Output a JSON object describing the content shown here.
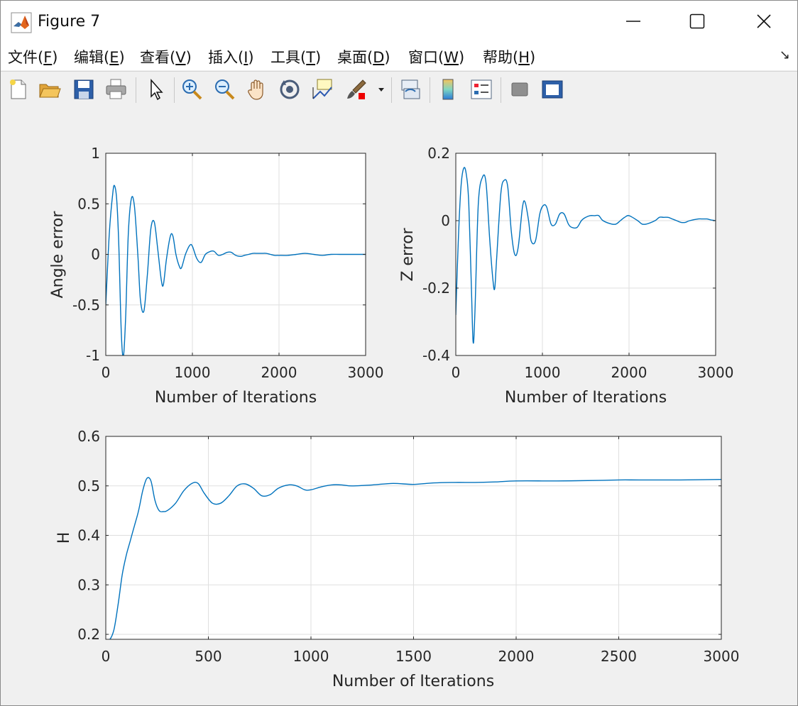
{
  "window": {
    "title": "Figure 7",
    "controls": [
      "minimize-icon",
      "maximize-icon",
      "close-icon"
    ]
  },
  "menubar": {
    "items": [
      {
        "label": "文件(",
        "key": "F",
        "end": ")"
      },
      {
        "label": "编辑(",
        "key": "E",
        "end": ")"
      },
      {
        "label": "查看(",
        "key": "V",
        "end": ")"
      },
      {
        "label": "插入(",
        "key": "I",
        "end": ")"
      },
      {
        "label": "工具(",
        "key": "T",
        "end": ")"
      },
      {
        "label": "桌面(",
        "key": "D",
        "end": ")"
      },
      {
        "label": "窗口(",
        "key": "W",
        "end": ")"
      },
      {
        "label": "帮助(",
        "key": "H",
        "end": ")"
      }
    ],
    "corner": "↘"
  },
  "toolbar": {
    "icons": [
      "new-figure-icon",
      "open-file-icon",
      "save-icon",
      "print-icon",
      "select-arrow-icon",
      "zoom-in-icon",
      "zoom-out-icon",
      "pan-hand-icon",
      "rotate-3d-icon",
      "data-cursor-icon",
      "brush-icon",
      "brush-dropdown-icon",
      "link-plot-icon",
      "colorbar-icon",
      "legend-icon",
      "hide-plot-tools-icon",
      "show-plot-tools-icon"
    ]
  },
  "colors": {
    "series": "#0072bd",
    "grid": "#dfdfdf",
    "axis": "#262626"
  },
  "chart_data": [
    {
      "type": "line",
      "xlabel": "Number of Iterations",
      "ylabel": "Angle error",
      "xlim": [
        0,
        3000
      ],
      "ylim": [
        -1,
        1
      ],
      "xticks": [
        "0",
        "1000",
        "2000",
        "3000"
      ],
      "yticks": [
        "-1",
        "-0.5",
        "0",
        "0.5",
        "1"
      ],
      "grid": true,
      "series": [
        {
          "x": [
            0,
            40,
            80,
            100,
            125,
            150,
            180,
            205,
            230,
            260,
            295,
            330,
            370,
            400,
            440,
            480,
            520,
            560,
            600,
            640,
            665,
            700,
            745,
            775,
            810,
            850,
            875,
            920,
            970,
            1000,
            1050,
            1100,
            1150,
            1210,
            1250,
            1300,
            1350,
            1400,
            1450,
            1500,
            1560,
            1600,
            1650,
            1700,
            1750,
            1800,
            1850,
            1900,
            1950,
            2000,
            2100,
            2200,
            2300,
            2400,
            2500,
            2600,
            2700,
            2800,
            2900,
            3000
          ],
          "y": [
            -0.5,
            0.2,
            0.6,
            0.68,
            0.55,
            0.1,
            -0.8,
            -1.0,
            -0.6,
            0.2,
            0.55,
            0.48,
            0.0,
            -0.45,
            -0.56,
            -0.2,
            0.25,
            0.32,
            0.05,
            -0.25,
            -0.3,
            -0.05,
            0.18,
            0.18,
            0.0,
            -0.12,
            -0.13,
            0.0,
            0.09,
            0.08,
            -0.04,
            -0.08,
            0.0,
            0.03,
            0.03,
            -0.01,
            0.0,
            0.02,
            0.02,
            -0.01,
            -0.02,
            -0.01,
            0.0,
            0.01,
            0.01,
            0.01,
            0.01,
            0.0,
            -0.01,
            -0.01,
            -0.01,
            0.0,
            0.01,
            0.0,
            -0.01,
            0.0,
            0.0,
            0.0,
            0.0,
            0.0
          ]
        }
      ]
    },
    {
      "type": "line",
      "xlabel": "Number of Iterations",
      "ylabel": "Z error",
      "xlim": [
        0,
        3000
      ],
      "ylim": [
        -0.4,
        0.2
      ],
      "xticks": [
        "0",
        "1000",
        "2000",
        "3000"
      ],
      "yticks": [
        "-0.4",
        "-0.2",
        "0",
        "0.2"
      ],
      "grid": true,
      "series": [
        {
          "x": [
            0,
            30,
            60,
            90,
            120,
            150,
            180,
            200,
            220,
            260,
            310,
            350,
            390,
            430,
            450,
            470,
            520,
            560,
            600,
            640,
            680,
            720,
            770,
            800,
            840,
            870,
            920,
            970,
            1010,
            1050,
            1100,
            1150,
            1200,
            1250,
            1300,
            1340,
            1400,
            1450,
            1500,
            1550,
            1600,
            1650,
            1700,
            1800,
            1850,
            1900,
            1950,
            2000,
            2100,
            2150,
            2200,
            2300,
            2350,
            2400,
            2450,
            2500,
            2550,
            2600,
            2650,
            2700,
            2800,
            2850,
            2900,
            2950,
            3000
          ],
          "y": [
            -0.28,
            -0.05,
            0.1,
            0.155,
            0.14,
            0.05,
            -0.2,
            -0.36,
            -0.28,
            0.05,
            0.13,
            0.11,
            -0.05,
            -0.18,
            -0.2,
            -0.12,
            0.08,
            0.12,
            0.1,
            -0.03,
            -0.1,
            -0.08,
            0.04,
            0.055,
            0.0,
            -0.06,
            -0.06,
            0.02,
            0.045,
            0.04,
            -0.01,
            -0.01,
            0.02,
            0.02,
            -0.01,
            -0.02,
            -0.02,
            0.0,
            0.01,
            0.015,
            0.015,
            0.015,
            0.0,
            -0.01,
            -0.01,
            0.0,
            0.01,
            0.015,
            0.0,
            -0.01,
            -0.01,
            0.0,
            0.01,
            0.01,
            0.01,
            0.005,
            0.0,
            -0.005,
            -0.005,
            0.0,
            0.005,
            0.005,
            0.005,
            0.002,
            0.0
          ]
        }
      ]
    },
    {
      "type": "line",
      "xlabel": "Number of Iterations",
      "ylabel": "H",
      "xlim": [
        0,
        3000
      ],
      "ylim": [
        0.19,
        0.6
      ],
      "xticks": [
        "0",
        "500",
        "1000",
        "1500",
        "2000",
        "2500",
        "3000"
      ],
      "yticks": [
        "0.2",
        "0.3",
        "0.4",
        "0.5",
        "0.6"
      ],
      "grid": true,
      "series": [
        {
          "x": [
            0,
            20,
            40,
            60,
            80,
            100,
            120,
            140,
            160,
            180,
            200,
            220,
            240,
            260,
            280,
            300,
            340,
            380,
            420,
            450,
            480,
            520,
            560,
            600,
            640,
            680,
            720,
            760,
            800,
            840,
            890,
            930,
            970,
            1000,
            1050,
            1100,
            1150,
            1200,
            1300,
            1400,
            1500,
            1600,
            1700,
            1800,
            1900,
            2000,
            2200,
            2400,
            2500,
            2600,
            2800,
            3000
          ],
          "y": [
            0.19,
            0.19,
            0.21,
            0.26,
            0.32,
            0.36,
            0.39,
            0.42,
            0.45,
            0.49,
            0.515,
            0.51,
            0.47,
            0.45,
            0.448,
            0.45,
            0.465,
            0.49,
            0.505,
            0.505,
            0.485,
            0.465,
            0.465,
            0.48,
            0.5,
            0.504,
            0.495,
            0.48,
            0.482,
            0.495,
            0.502,
            0.5,
            0.492,
            0.492,
            0.498,
            0.502,
            0.502,
            0.5,
            0.502,
            0.505,
            0.503,
            0.506,
            0.507,
            0.507,
            0.508,
            0.51,
            0.51,
            0.511,
            0.512,
            0.512,
            0.512,
            0.513
          ]
        }
      ]
    }
  ]
}
